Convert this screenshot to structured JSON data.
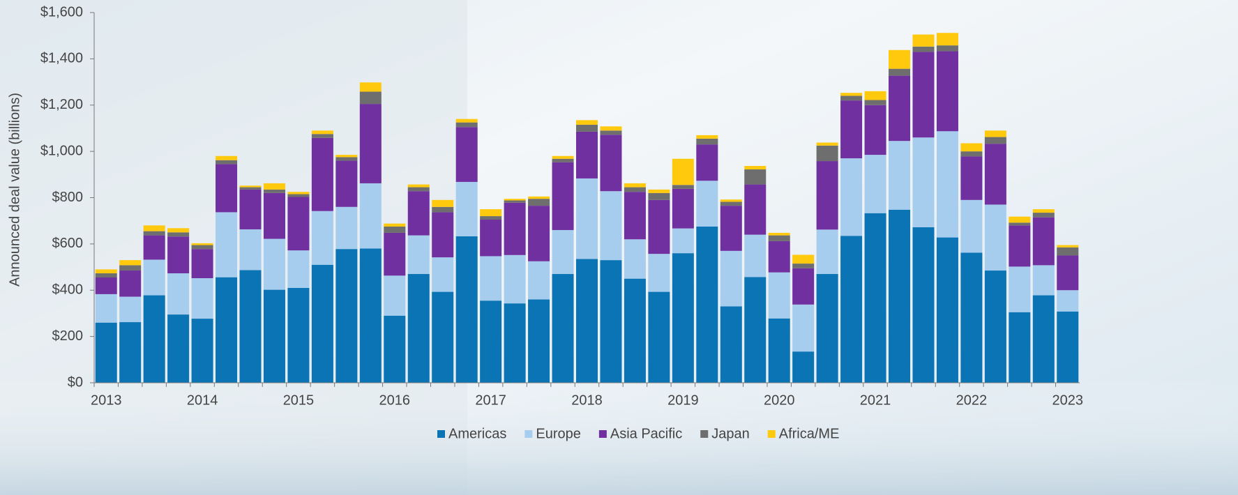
{
  "chart_data": {
    "type": "stacked-bar",
    "y_label": "Announced deal value (billions)",
    "categories": [
      "2013",
      null,
      null,
      null,
      "2014",
      null,
      null,
      null,
      "2015",
      null,
      null,
      null,
      "2016",
      null,
      null,
      null,
      "2017",
      null,
      null,
      null,
      "2018",
      null,
      null,
      null,
      "2019",
      null,
      null,
      null,
      "2020",
      null,
      null,
      null,
      "2021",
      null,
      null,
      null,
      "2022",
      null,
      null,
      null,
      "2023"
    ],
    "series": [
      {
        "name": "Americas",
        "color": "#0b74b4",
        "values": [
          260,
          262,
          378,
          295,
          277,
          456,
          487,
          402,
          410,
          510,
          578,
          580,
          290,
          470,
          393,
          633,
          355,
          343,
          360,
          470,
          535,
          530,
          450,
          393,
          560,
          675,
          330,
          457,
          278,
          135,
          470,
          635,
          733,
          748,
          672,
          628,
          562,
          485,
          305,
          378,
          308
        ]
      },
      {
        "name": "Europe",
        "color": "#a6cdee",
        "values": [
          123,
          110,
          154,
          178,
          175,
          281,
          176,
          220,
          162,
          232,
          182,
          282,
          173,
          167,
          149,
          235,
          192,
          209,
          165,
          190,
          348,
          298,
          170,
          164,
          107,
          198,
          240,
          183,
          199,
          203,
          192,
          335,
          252,
          297,
          388,
          459,
          228,
          285,
          197,
          130,
          92
        ]
      },
      {
        "name": "Asia Pacific",
        "color": "#7030a0",
        "values": [
          72,
          113,
          105,
          159,
          126,
          208,
          172,
          198,
          231,
          316,
          200,
          343,
          185,
          191,
          195,
          237,
          158,
          226,
          240,
          293,
          202,
          244,
          205,
          233,
          171,
          157,
          195,
          217,
          135,
          157,
          296,
          250,
          215,
          282,
          370,
          346,
          188,
          263,
          178,
          207,
          150
        ]
      },
      {
        "name": "Japan",
        "color": "#6e6e6e",
        "values": [
          18,
          23,
          18,
          18,
          17,
          17,
          10,
          15,
          12,
          17,
          15,
          53,
          27,
          17,
          23,
          20,
          15,
          10,
          30,
          15,
          30,
          18,
          20,
          30,
          17,
          25,
          17,
          65,
          25,
          20,
          67,
          20,
          22,
          30,
          23,
          25,
          22,
          29,
          12,
          20,
          35
        ]
      },
      {
        "name": "Africa/ME",
        "color": "#ffc90e",
        "values": [
          17,
          22,
          25,
          18,
          8,
          18,
          7,
          27,
          10,
          15,
          10,
          40,
          13,
          12,
          30,
          15,
          30,
          7,
          10,
          12,
          20,
          18,
          17,
          15,
          113,
          15,
          10,
          15,
          11,
          38,
          13,
          13,
          38,
          81,
          52,
          54,
          35,
          28,
          26,
          15,
          10
        ]
      }
    ],
    "ylim": [
      0,
      1600
    ],
    "yticks": [
      {
        "value": 0,
        "label": "$0"
      },
      {
        "value": 200,
        "label": "$200"
      },
      {
        "value": 400,
        "label": "$400"
      },
      {
        "value": 600,
        "label": "$600"
      },
      {
        "value": 800,
        "label": "$800"
      },
      {
        "value": 1000,
        "label": "$1,000"
      },
      {
        "value": 1200,
        "label": "$1,200"
      },
      {
        "value": 1400,
        "label": "$1,400"
      },
      {
        "value": 1600,
        "label": "$1,600"
      }
    ],
    "legend": "bottom"
  }
}
